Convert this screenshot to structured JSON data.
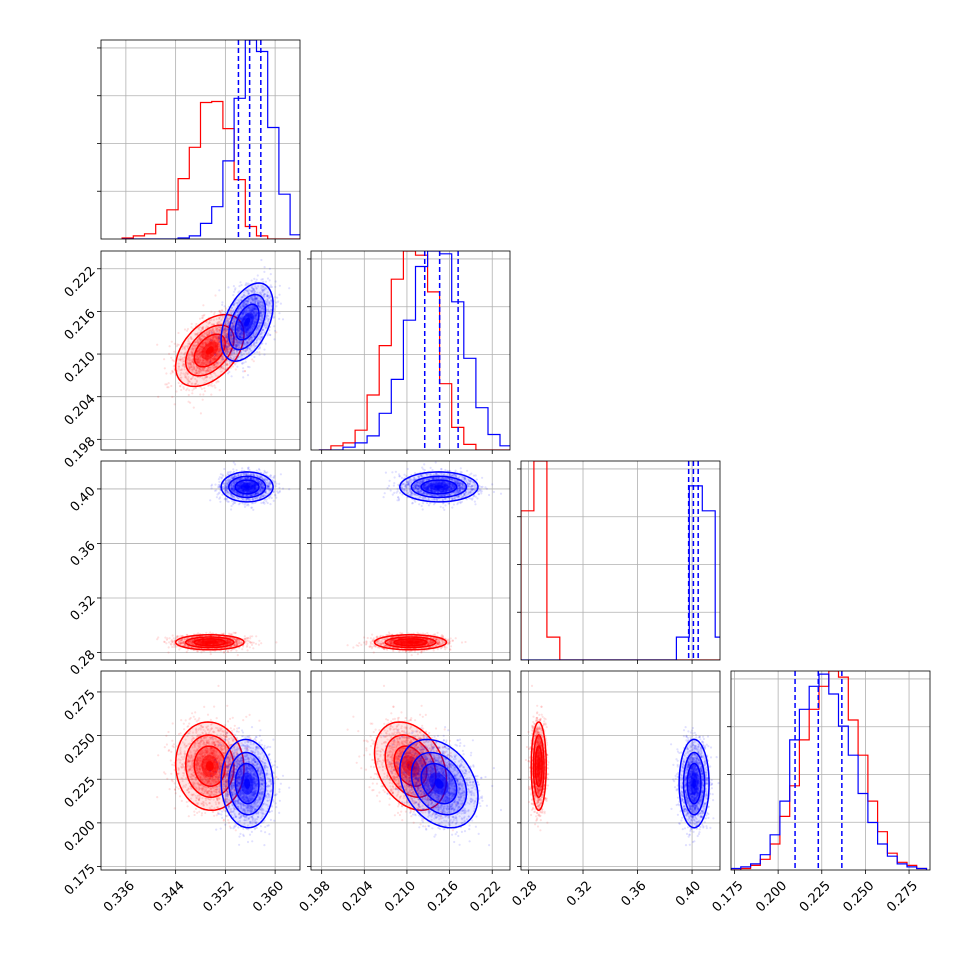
{
  "colors": {
    "series_a": "#ff0000",
    "series_b": "#0000ff",
    "grid": "#b0b0b0"
  },
  "chart_data": {
    "type": "corner",
    "grid": true,
    "parameters": [
      {
        "id": "p1",
        "range": [
          0.332,
          0.364
        ],
        "ticks": [
          0.336,
          0.344,
          0.352,
          0.36
        ],
        "tick_labels": [
          "0.336",
          "0.344",
          "0.352",
          "0.360"
        ]
      },
      {
        "id": "p2",
        "range": [
          0.1965,
          0.2245
        ],
        "ticks": [
          0.198,
          0.204,
          0.21,
          0.216,
          0.222
        ],
        "tick_labels": [
          "0.198",
          "0.204",
          "0.210",
          "0.216",
          "0.222"
        ]
      },
      {
        "id": "p3",
        "range": [
          0.2745,
          0.4205
        ],
        "ticks": [
          0.28,
          0.32,
          0.36,
          0.4
        ],
        "tick_labels": [
          "0.28",
          "0.32",
          "0.36",
          "0.40"
        ]
      },
      {
        "id": "p4",
        "range": [
          0.173,
          0.287
        ],
        "ticks": [
          0.175,
          0.2,
          0.225,
          0.25,
          0.275
        ],
        "tick_labels": [
          "0.175",
          "0.200",
          "0.225",
          "0.250",
          "0.275"
        ]
      }
    ],
    "series": [
      {
        "color": "#ff0000",
        "mean": [
          0.3495,
          0.2105,
          0.2875,
          0.2325
        ],
        "sd": [
          0.0025,
          0.0023,
          0.0025,
          0.0115
        ],
        "corr": [
          [
            0,
            1,
            0.45
          ],
          [
            0,
            3,
            -0.05
          ],
          [
            1,
            3,
            -0.3
          ]
        ]
      },
      {
        "color": "#0000ff",
        "mean": [
          0.3555,
          0.2145,
          0.4015,
          0.2225
        ],
        "sd": [
          0.0019,
          0.0025,
          0.005,
          0.0115
        ],
        "corr": [
          [
            0,
            1,
            0.45
          ],
          [
            0,
            3,
            -0.05
          ],
          [
            1,
            3,
            -0.3
          ]
        ]
      }
    ],
    "histograms": [
      {
        "param": 0,
        "bins": [
          0.3354,
          0.3372,
          0.339,
          0.3408,
          0.3426,
          0.3444,
          0.3462,
          0.348,
          0.3498,
          0.3516,
          0.3534,
          0.3552,
          0.357,
          0.3588,
          0.3606,
          0.3624,
          0.3642
        ],
        "counts": [
          [
            1,
            3,
            5,
            14,
            28,
            58,
            88,
            131,
            132,
            106,
            57,
            12,
            3,
            0,
            0,
            0
          ],
          [
            0,
            0,
            0,
            0,
            0,
            1,
            3,
            15,
            31,
            75,
            135,
            191,
            180,
            107,
            43,
            4
          ]
        ]
      },
      {
        "param": 1,
        "bins": [
          0.1976,
          0.1993,
          0.201,
          0.2027,
          0.2044,
          0.2061,
          0.2078,
          0.2095,
          0.2112,
          0.2129,
          0.2146,
          0.2163,
          0.218,
          0.2197,
          0.2214,
          0.2231,
          0.2248
        ],
        "counts": [
          [
            0,
            3,
            5,
            14,
            39,
            74,
            121,
            141,
            138,
            112,
            47,
            16,
            4,
            0,
            0,
            0
          ],
          [
            0,
            0,
            2,
            5,
            10,
            26,
            50,
            92,
            130,
            141,
            139,
            105,
            65,
            30,
            11,
            3
          ]
        ]
      },
      {
        "param": 2,
        "bins": [
          0.2745,
          0.284,
          0.2935,
          0.303,
          0.3125,
          0.322,
          0.3315,
          0.341,
          0.3505,
          0.36,
          0.3695,
          0.379,
          0.3885,
          0.398,
          0.4075,
          0.417,
          0.4265
        ],
        "counts": [
          [
            150,
            200,
            23,
            0,
            0,
            0,
            0,
            0,
            0,
            0,
            0,
            0,
            0,
            0,
            0,
            0
          ],
          [
            0,
            0,
            0,
            0,
            0,
            0,
            0,
            0,
            0,
            0,
            0,
            0,
            23,
            175,
            150,
            23
          ]
        ]
      },
      {
        "param": 3,
        "bins": [
          0.173,
          0.1786,
          0.1842,
          0.1898,
          0.1954,
          0.201,
          0.2066,
          0.2122,
          0.2178,
          0.2234,
          0.229,
          0.2346,
          0.2402,
          0.2458,
          0.2514,
          0.257,
          0.2626,
          0.2682,
          0.2738,
          0.2794,
          0.285
        ],
        "counts": [
          [
            0,
            1,
            3,
            7,
            17,
            35,
            55,
            85,
            105,
            120,
            130,
            126,
            98,
            75,
            45,
            25,
            11,
            5,
            3,
            1
          ],
          [
            1,
            2,
            4,
            10,
            23,
            45,
            85,
            105,
            120,
            128,
            115,
            94,
            75,
            50,
            31,
            17,
            9,
            4,
            2,
            1
          ]
        ]
      }
    ],
    "quantile_lines": [
      {
        "param": 0,
        "values": [
          0.3541,
          0.3559,
          0.3577
        ]
      },
      {
        "param": 1,
        "values": [
          0.2125,
          0.2146,
          0.2172
        ]
      },
      {
        "param": 2,
        "values": [
          0.3975,
          0.401,
          0.4045
        ]
      },
      {
        "param": 3,
        "values": [
          0.2097,
          0.223,
          0.2365
        ]
      }
    ]
  }
}
